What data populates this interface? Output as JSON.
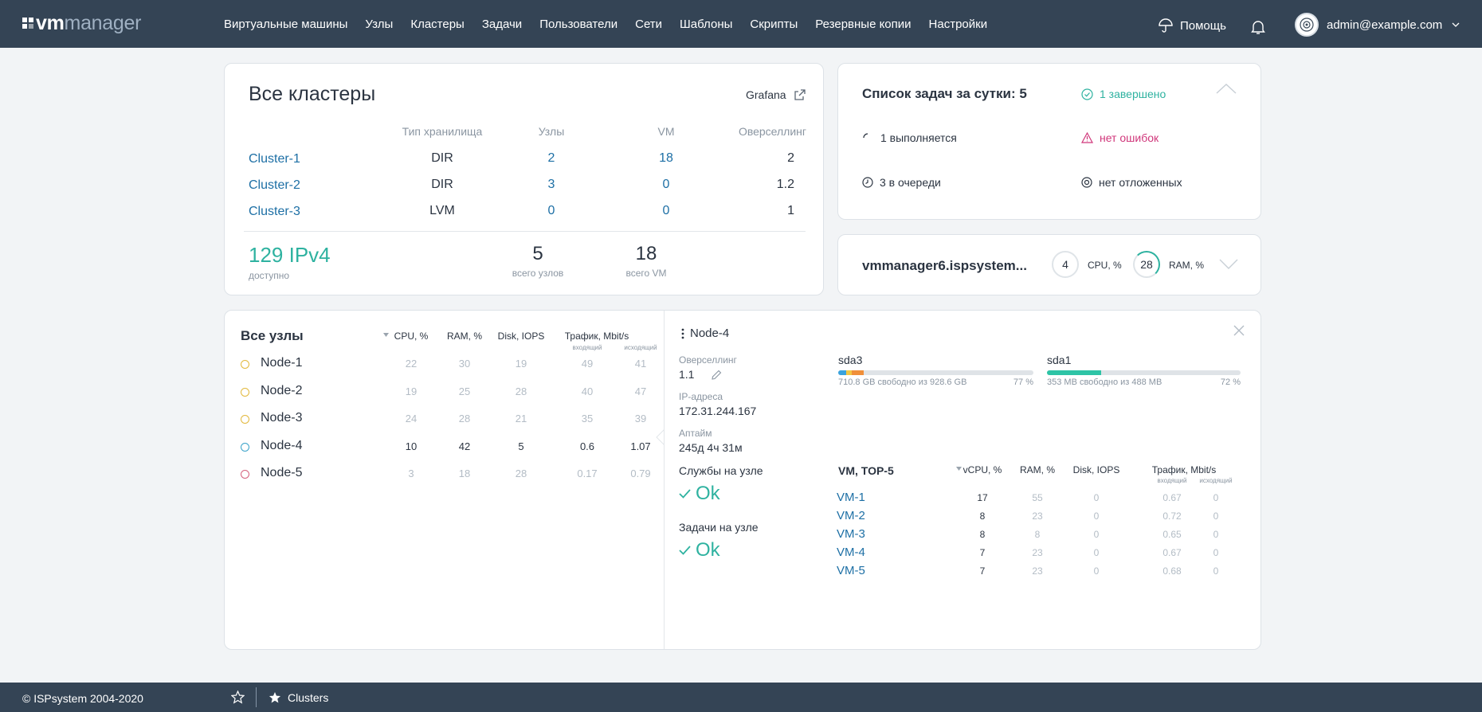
{
  "brand": {
    "logo_bold": "vm",
    "logo_light": "manager"
  },
  "nav": [
    "Виртуальные машины",
    "Узлы",
    "Кластеры",
    "Задачи",
    "Пользователи",
    "Сети",
    "Шаблоны",
    "Скрипты",
    "Резервные копии",
    "Настройки"
  ],
  "header": {
    "help": "Помощь",
    "user": "admin@example.com"
  },
  "clusters": {
    "title": "Все кластеры",
    "grafana": "Grafana",
    "columns": {
      "storage": "Тип хранилища",
      "nodes": "Узлы",
      "vm": "VM",
      "overselling": "Оверселлинг"
    },
    "rows": [
      {
        "name": "Cluster-1",
        "storage": "DIR",
        "nodes": "2",
        "vm": "18",
        "overselling": "2"
      },
      {
        "name": "Cluster-2",
        "storage": "DIR",
        "nodes": "3",
        "vm": "0",
        "overselling": "1.2"
      },
      {
        "name": "Cluster-3",
        "storage": "LVM",
        "nodes": "0",
        "vm": "0",
        "overselling": "1"
      }
    ],
    "ipv4": "129 IPv4",
    "ipv4_label": "доступно",
    "total_nodes": "5",
    "total_nodes_label": "всего узлов",
    "total_vm": "18",
    "total_vm_label": "всего VM"
  },
  "tasks": {
    "title": "Список задач за сутки: 5",
    "completed": "1 завершено",
    "running": "1 выполняется",
    "errors": "нет ошибок",
    "queued": "3 в очереди",
    "postponed": "нет отложенных"
  },
  "host": {
    "name": "vmmanager6.ispsystem...",
    "cpu": "4",
    "cpu_label": "CPU, %",
    "ram": "28",
    "ram_label": "RAM, %"
  },
  "nodes": {
    "title": "Все узлы",
    "cols": {
      "cpu": "CPU, %",
      "ram": "RAM, %",
      "disk": "Disk, IOPS",
      "traffic": "Трафик, Mbit/s",
      "in": "входящий",
      "out": "исходящий"
    },
    "rows": [
      {
        "name": "Node-1",
        "cpu": "22",
        "ram": "30",
        "disk": "19",
        "in": "49",
        "out": "41",
        "dot": "#e2b83c",
        "active": false
      },
      {
        "name": "Node-2",
        "cpu": "19",
        "ram": "25",
        "disk": "28",
        "in": "40",
        "out": "47",
        "dot": "#e2b83c",
        "active": false
      },
      {
        "name": "Node-3",
        "cpu": "24",
        "ram": "28",
        "disk": "21",
        "in": "35",
        "out": "39",
        "dot": "#e2b83c",
        "active": false
      },
      {
        "name": "Node-4",
        "cpu": "10",
        "ram": "42",
        "disk": "5",
        "in": "0.6",
        "out": "1.07",
        "dot": "#3aa3c9",
        "active": true
      },
      {
        "name": "Node-5",
        "cpu": "3",
        "ram": "18",
        "disk": "28",
        "in": "0.17",
        "out": "0.79",
        "dot": "#d5617c",
        "active": false
      }
    ]
  },
  "node_detail": {
    "name": "Node-4",
    "overselling_label": "Оверселлинг",
    "overselling": "1.1",
    "ip_label": "IP-адреса",
    "ip": "172.31.244.167",
    "uptime_label": "Аптайм",
    "uptime": "245д 4ч 31м",
    "disks": [
      {
        "name": "sda3",
        "free": "710.8 GB свободно из 928.6 GB",
        "pct": "77 %",
        "segments": [
          {
            "color": "#3aa3dd",
            "frac": 0.04
          },
          {
            "color": "#f2c744",
            "frac": 0.03
          },
          {
            "color": "#f08f3a",
            "frac": 0.06
          }
        ]
      },
      {
        "name": "sda1",
        "free": "353 MB свободно из 488 MB",
        "pct": "72 %",
        "segments": [
          {
            "color": "#2ec4a6",
            "frac": 0.28
          }
        ]
      }
    ],
    "services_label": "Службы на узле",
    "services_status": "Ok",
    "tasks_label": "Задачи на узле",
    "tasks_status": "Ok",
    "vm_top": {
      "title": "VM, TOP-5",
      "cols": {
        "vcpu": "vCPU, %",
        "ram": "RAM, %",
        "disk": "Disk, IOPS",
        "traffic": "Трафик, Mbit/s",
        "in": "входящий",
        "out": "исходящий"
      },
      "rows": [
        {
          "name": "VM-1",
          "vcpu": "17",
          "ram": "55",
          "disk": "0",
          "in": "0.67",
          "out": "0"
        },
        {
          "name": "VM-2",
          "vcpu": "8",
          "ram": "23",
          "disk": "0",
          "in": "0.72",
          "out": "0"
        },
        {
          "name": "VM-3",
          "vcpu": "8",
          "ram": "8",
          "disk": "0",
          "in": "0.65",
          "out": "0"
        },
        {
          "name": "VM-4",
          "vcpu": "7",
          "ram": "23",
          "disk": "0",
          "in": "0.67",
          "out": "0"
        },
        {
          "name": "VM-5",
          "vcpu": "7",
          "ram": "23",
          "disk": "0",
          "in": "0.68",
          "out": "0"
        }
      ]
    }
  },
  "footer": {
    "copyright": "© ISPsystem 2004-2020",
    "fav": "Clusters"
  },
  "colors": {
    "header": "#344455",
    "link": "#1d6fa5",
    "accent": "#2eb2a0",
    "error": "#d0367a"
  }
}
